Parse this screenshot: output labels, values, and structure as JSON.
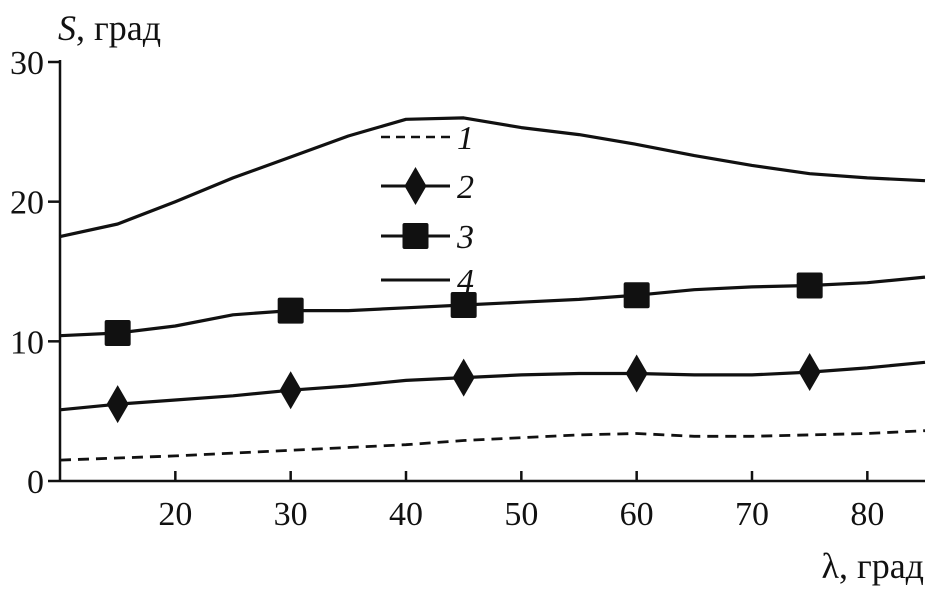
{
  "chart_data": {
    "type": "line",
    "ylabel_symbol": "S",
    "ylabel_unit": ", град",
    "xlabel": "λ, град",
    "xlim": [
      10,
      85
    ],
    "ylim": [
      0,
      30
    ],
    "xticks": [
      20,
      30,
      40,
      50,
      60,
      70,
      80
    ],
    "yticks": [
      0,
      10,
      20,
      30
    ],
    "grid": false,
    "legend_position": "top-center",
    "series": [
      {
        "name": "1",
        "style": "dashed",
        "marker": "none",
        "x": [
          10,
          20,
          30,
          40,
          45,
          50,
          55,
          60,
          65,
          70,
          75,
          80,
          85
        ],
        "y": [
          1.5,
          1.8,
          2.2,
          2.6,
          2.9,
          3.1,
          3.3,
          3.4,
          3.2,
          3.2,
          3.3,
          3.4,
          3.6
        ],
        "marker_x": []
      },
      {
        "name": "2",
        "style": "solid",
        "marker": "diamond",
        "x": [
          10,
          15,
          20,
          25,
          30,
          35,
          40,
          45,
          50,
          55,
          60,
          65,
          70,
          75,
          80,
          85
        ],
        "y": [
          5.1,
          5.5,
          5.8,
          6.1,
          6.5,
          6.8,
          7.2,
          7.4,
          7.6,
          7.7,
          7.7,
          7.6,
          7.6,
          7.8,
          8.1,
          8.5
        ],
        "marker_x": [
          15,
          30,
          45,
          60,
          75
        ]
      },
      {
        "name": "3",
        "style": "solid",
        "marker": "square",
        "x": [
          10,
          15,
          20,
          25,
          30,
          35,
          40,
          45,
          50,
          55,
          60,
          65,
          70,
          75,
          80,
          85
        ],
        "y": [
          10.4,
          10.6,
          11.1,
          11.9,
          12.2,
          12.2,
          12.4,
          12.6,
          12.8,
          13.0,
          13.3,
          13.7,
          13.9,
          14.0,
          14.2,
          14.6
        ],
        "marker_x": [
          15,
          30,
          45,
          60,
          75
        ]
      },
      {
        "name": "4",
        "style": "solid",
        "marker": "none",
        "x": [
          10,
          15,
          20,
          25,
          30,
          35,
          40,
          45,
          50,
          55,
          60,
          65,
          70,
          75,
          80,
          85
        ],
        "y": [
          17.5,
          18.4,
          20.0,
          21.7,
          23.2,
          24.7,
          25.9,
          26.0,
          25.3,
          24.8,
          24.1,
          23.3,
          22.6,
          22.0,
          21.7,
          21.5
        ],
        "marker_x": []
      }
    ]
  }
}
